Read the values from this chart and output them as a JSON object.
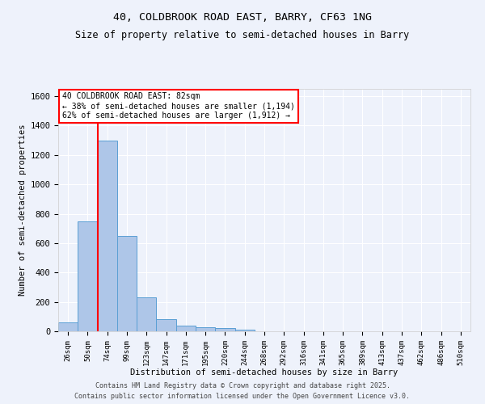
{
  "title": "40, COLDBROOK ROAD EAST, BARRY, CF63 1NG",
  "subtitle": "Size of property relative to semi-detached houses in Barry",
  "xlabel": "Distribution of semi-detached houses by size in Barry",
  "ylabel": "Number of semi-detached properties",
  "categories": [
    "26sqm",
    "50sqm",
    "74sqm",
    "99sqm",
    "123sqm",
    "147sqm",
    "171sqm",
    "195sqm",
    "220sqm",
    "244sqm",
    "268sqm",
    "292sqm",
    "316sqm",
    "341sqm",
    "365sqm",
    "389sqm",
    "413sqm",
    "437sqm",
    "462sqm",
    "486sqm",
    "510sqm"
  ],
  "values": [
    60,
    750,
    1300,
    650,
    230,
    85,
    40,
    25,
    20,
    10,
    0,
    0,
    0,
    0,
    0,
    0,
    0,
    0,
    0,
    0,
    0
  ],
  "bar_color": "#aec6e8",
  "bar_edge_color": "#5a9fd4",
  "red_line_x": 1.5,
  "red_line_label": "40 COLDBROOK ROAD EAST: 82sqm",
  "annotation_smaller": "← 38% of semi-detached houses are smaller (1,194)",
  "annotation_larger": "62% of semi-detached houses are larger (1,912) →",
  "ylim": [
    0,
    1650
  ],
  "yticks": [
    0,
    200,
    400,
    600,
    800,
    1000,
    1200,
    1400,
    1600
  ],
  "background_color": "#eef2fb",
  "grid_color": "#ffffff",
  "footer1": "Contains HM Land Registry data © Crown copyright and database right 2025.",
  "footer2": "Contains public sector information licensed under the Open Government Licence v3.0."
}
